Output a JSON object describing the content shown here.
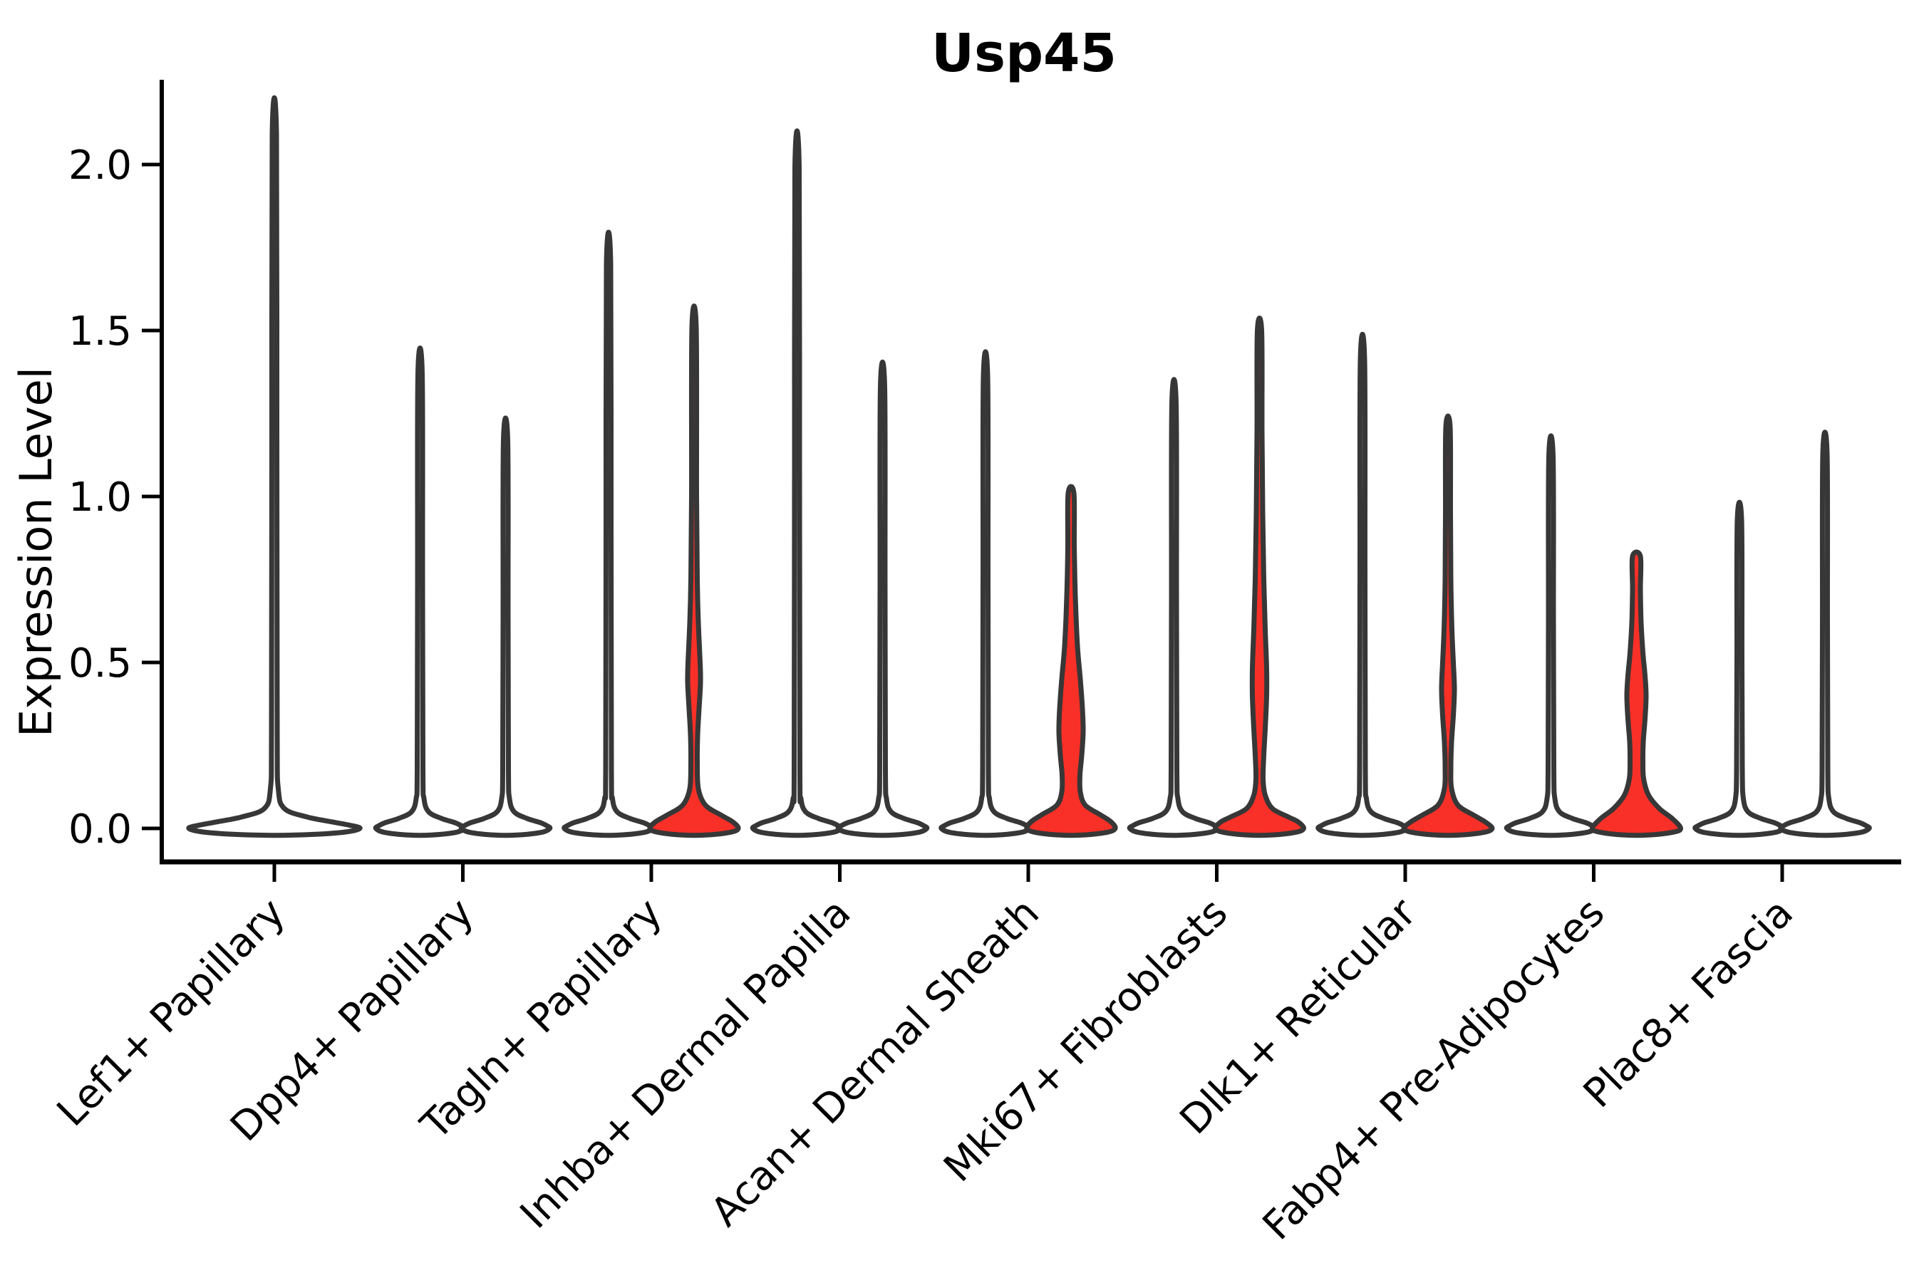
{
  "title": "Usp45",
  "colors": {
    "violin_red_fill": "#F93028",
    "violin_white_fill": "#FFFFFF",
    "violin_outline": "#373737",
    "axis_color": "#000000",
    "background": "#FFFFFF"
  },
  "chart_data": {
    "type": "violin",
    "title": "Usp45",
    "xlabel": "",
    "ylabel": "Expression Level",
    "ylim": [
      -0.07,
      2.3
    ],
    "grid": false,
    "legend": "none",
    "yticks_values": [
      0.0,
      0.5,
      1.0,
      1.5,
      2.0
    ],
    "yticks_labels": [
      "0.0",
      "0.5",
      "1.0",
      "1.5",
      "2.0"
    ],
    "categories": [
      "Lef1+ Papillary",
      "Dpp4+ Papillary",
      "Tagln+ Papillary",
      "Inhba+ Dermal Papilla",
      "Acan+ Dermal Sheath",
      "Mki67+ Fibroblasts",
      "Dlk1+ Reticular",
      "Fabp4+ Pre-Adipocytes",
      "Plac8+ Fascia"
    ],
    "violins": [
      {
        "category_index": 0,
        "position": "center",
        "max_expression": 2.09,
        "fill": "white",
        "profile": [
          [
            2.09,
            3
          ],
          [
            1.2,
            3.5
          ],
          [
            0.3,
            4
          ],
          [
            0.12,
            5.5
          ],
          [
            0.06,
            14
          ],
          [
            0.035,
            45
          ],
          [
            0.02,
            80
          ],
          [
            0.01,
            105
          ],
          [
            0,
            120
          ],
          [
            -0.012,
            95
          ],
          [
            -0.02,
            30
          ]
        ]
      },
      {
        "category_index": 1,
        "position": "left",
        "max_expression": 1.37,
        "fill": "white",
        "profile": [
          [
            1.37,
            3
          ],
          [
            0.75,
            3.5
          ],
          [
            0.18,
            4
          ],
          [
            0.09,
            5.5
          ],
          [
            0.05,
            12
          ],
          [
            0.03,
            30
          ],
          [
            0.018,
            48
          ],
          [
            0.008,
            58
          ],
          [
            0,
            62
          ],
          [
            -0.012,
            50
          ],
          [
            -0.02,
            16
          ]
        ]
      },
      {
        "category_index": 1,
        "position": "right",
        "max_expression": 1.17,
        "fill": "white",
        "profile": [
          [
            1.17,
            3
          ],
          [
            0.64,
            3.5
          ],
          [
            0.18,
            4
          ],
          [
            0.09,
            5.5
          ],
          [
            0.05,
            12
          ],
          [
            0.03,
            30
          ],
          [
            0.018,
            48
          ],
          [
            0.008,
            58
          ],
          [
            0,
            62
          ],
          [
            -0.012,
            50
          ],
          [
            -0.02,
            16
          ]
        ]
      },
      {
        "category_index": 2,
        "position": "left",
        "max_expression": 1.7,
        "fill": "white",
        "profile": [
          [
            1.7,
            3
          ],
          [
            0.93,
            3.5
          ],
          [
            0.18,
            4
          ],
          [
            0.09,
            5.5
          ],
          [
            0.05,
            12
          ],
          [
            0.03,
            30
          ],
          [
            0.018,
            48
          ],
          [
            0.008,
            58
          ],
          [
            0,
            62
          ],
          [
            -0.012,
            50
          ],
          [
            -0.02,
            16
          ]
        ]
      },
      {
        "category_index": 2,
        "position": "right",
        "max_expression": 1.51,
        "fill": "red",
        "profile": [
          [
            1.51,
            3
          ],
          [
            1.0,
            3.5
          ],
          [
            0.75,
            4.5
          ],
          [
            0.62,
            6
          ],
          [
            0.5,
            8.5
          ],
          [
            0.44,
            9
          ],
          [
            0.36,
            7
          ],
          [
            0.28,
            5
          ],
          [
            0.2,
            4.5
          ],
          [
            0.12,
            6
          ],
          [
            0.07,
            16
          ],
          [
            0.04,
            38
          ],
          [
            0.02,
            54
          ],
          [
            0,
            62
          ],
          [
            -0.012,
            50
          ],
          [
            -0.02,
            16
          ]
        ]
      },
      {
        "category_index": 3,
        "position": "left",
        "max_expression": 1.99,
        "fill": "white",
        "profile": [
          [
            1.99,
            3
          ],
          [
            1.1,
            3.5
          ],
          [
            0.18,
            4
          ],
          [
            0.09,
            5.5
          ],
          [
            0.05,
            12
          ],
          [
            0.03,
            30
          ],
          [
            0.018,
            48
          ],
          [
            0.008,
            58
          ],
          [
            0,
            62
          ],
          [
            -0.012,
            50
          ],
          [
            -0.02,
            16
          ]
        ]
      },
      {
        "category_index": 3,
        "position": "right",
        "max_expression": 1.33,
        "fill": "white",
        "profile": [
          [
            1.33,
            3
          ],
          [
            0.73,
            3.5
          ],
          [
            0.18,
            4
          ],
          [
            0.09,
            5.5
          ],
          [
            0.05,
            12
          ],
          [
            0.03,
            30
          ],
          [
            0.018,
            48
          ],
          [
            0.008,
            58
          ],
          [
            0,
            62
          ],
          [
            -0.012,
            50
          ],
          [
            -0.02,
            16
          ]
        ]
      },
      {
        "category_index": 4,
        "position": "left",
        "max_expression": 1.36,
        "fill": "white",
        "profile": [
          [
            1.36,
            3
          ],
          [
            0.75,
            3.5
          ],
          [
            0.18,
            4
          ],
          [
            0.09,
            5.5
          ],
          [
            0.05,
            12
          ],
          [
            0.03,
            30
          ],
          [
            0.018,
            48
          ],
          [
            0.008,
            58
          ],
          [
            0,
            62
          ],
          [
            -0.012,
            50
          ],
          [
            -0.02,
            16
          ]
        ]
      },
      {
        "category_index": 4,
        "position": "right",
        "max_expression": 1.01,
        "fill": "red",
        "profile": [
          [
            1.01,
            4
          ],
          [
            0.85,
            4.5
          ],
          [
            0.7,
            6
          ],
          [
            0.55,
            9
          ],
          [
            0.45,
            13
          ],
          [
            0.36,
            16
          ],
          [
            0.29,
            17
          ],
          [
            0.22,
            15
          ],
          [
            0.16,
            12.5
          ],
          [
            0.11,
            13
          ],
          [
            0.07,
            20
          ],
          [
            0.04,
            42
          ],
          [
            0.02,
            56
          ],
          [
            0,
            62
          ],
          [
            -0.012,
            50
          ],
          [
            -0.02,
            16
          ]
        ]
      },
      {
        "category_index": 5,
        "position": "left",
        "max_expression": 1.28,
        "fill": "white",
        "profile": [
          [
            1.28,
            3
          ],
          [
            0.7,
            3.5
          ],
          [
            0.18,
            4
          ],
          [
            0.09,
            5.5
          ],
          [
            0.05,
            12
          ],
          [
            0.03,
            30
          ],
          [
            0.018,
            48
          ],
          [
            0.008,
            58
          ],
          [
            0,
            62
          ],
          [
            -0.012,
            50
          ],
          [
            -0.02,
            16
          ]
        ]
      },
      {
        "category_index": 5,
        "position": "right",
        "max_expression": 1.5,
        "fill": "red",
        "profile": [
          [
            1.5,
            3
          ],
          [
            1.2,
            3.5
          ],
          [
            0.95,
            4.5
          ],
          [
            0.75,
            6
          ],
          [
            0.6,
            8
          ],
          [
            0.48,
            10
          ],
          [
            0.4,
            10
          ],
          [
            0.3,
            8
          ],
          [
            0.22,
            6
          ],
          [
            0.15,
            5
          ],
          [
            0.1,
            8
          ],
          [
            0.06,
            18
          ],
          [
            0.035,
            40
          ],
          [
            0.02,
            54
          ],
          [
            0,
            62
          ],
          [
            -0.012,
            50
          ],
          [
            -0.02,
            16
          ]
        ]
      },
      {
        "category_index": 6,
        "position": "left",
        "max_expression": 1.41,
        "fill": "white",
        "profile": [
          [
            1.41,
            3
          ],
          [
            0.78,
            3.5
          ],
          [
            0.18,
            4
          ],
          [
            0.09,
            5.5
          ],
          [
            0.05,
            12
          ],
          [
            0.03,
            30
          ],
          [
            0.018,
            48
          ],
          [
            0.008,
            58
          ],
          [
            0,
            62
          ],
          [
            -0.012,
            50
          ],
          [
            -0.02,
            16
          ]
        ]
      },
      {
        "category_index": 6,
        "position": "right",
        "max_expression": 1.21,
        "fill": "red",
        "profile": [
          [
            1.21,
            3
          ],
          [
            0.95,
            3.5
          ],
          [
            0.75,
            4
          ],
          [
            0.6,
            5.5
          ],
          [
            0.5,
            7.5
          ],
          [
            0.42,
            9
          ],
          [
            0.34,
            7.5
          ],
          [
            0.26,
            5
          ],
          [
            0.18,
            4
          ],
          [
            0.12,
            5
          ],
          [
            0.07,
            14
          ],
          [
            0.04,
            36
          ],
          [
            0.02,
            52
          ],
          [
            0,
            62
          ],
          [
            -0.012,
            50
          ],
          [
            -0.02,
            16
          ]
        ]
      },
      {
        "category_index": 7,
        "position": "left",
        "max_expression": 1.12,
        "fill": "white",
        "profile": [
          [
            1.12,
            3
          ],
          [
            0.62,
            3.5
          ],
          [
            0.18,
            4
          ],
          [
            0.09,
            5.5
          ],
          [
            0.05,
            12
          ],
          [
            0.03,
            30
          ],
          [
            0.018,
            48
          ],
          [
            0.008,
            58
          ],
          [
            0,
            62
          ],
          [
            -0.012,
            50
          ],
          [
            -0.02,
            16
          ]
        ]
      },
      {
        "category_index": 7,
        "position": "right",
        "max_expression": 0.82,
        "fill": "red",
        "profile": [
          [
            0.82,
            5.5
          ],
          [
            0.72,
            5.5
          ],
          [
            0.62,
            6.5
          ],
          [
            0.53,
            9
          ],
          [
            0.46,
            12
          ],
          [
            0.4,
            13.5
          ],
          [
            0.33,
            12
          ],
          [
            0.26,
            9.5
          ],
          [
            0.2,
            9
          ],
          [
            0.15,
            10
          ],
          [
            0.1,
            17
          ],
          [
            0.06,
            32
          ],
          [
            0.03,
            50
          ],
          [
            0,
            62
          ],
          [
            -0.012,
            50
          ],
          [
            -0.02,
            16
          ]
        ]
      },
      {
        "category_index": 8,
        "position": "left",
        "max_expression": 0.93,
        "fill": "white",
        "profile": [
          [
            0.93,
            3
          ],
          [
            0.51,
            3.5
          ],
          [
            0.18,
            4
          ],
          [
            0.09,
            5.5
          ],
          [
            0.05,
            12
          ],
          [
            0.03,
            30
          ],
          [
            0.018,
            48
          ],
          [
            0.008,
            58
          ],
          [
            0,
            62
          ],
          [
            -0.012,
            50
          ],
          [
            -0.02,
            16
          ]
        ]
      },
      {
        "category_index": 8,
        "position": "right",
        "max_expression": 1.13,
        "fill": "white",
        "profile": [
          [
            1.13,
            3
          ],
          [
            0.62,
            3.5
          ],
          [
            0.18,
            4
          ],
          [
            0.09,
            5.5
          ],
          [
            0.05,
            12
          ],
          [
            0.03,
            30
          ],
          [
            0.018,
            48
          ],
          [
            0.008,
            58
          ],
          [
            0,
            62
          ],
          [
            -0.012,
            50
          ],
          [
            -0.02,
            16
          ]
        ]
      }
    ]
  }
}
